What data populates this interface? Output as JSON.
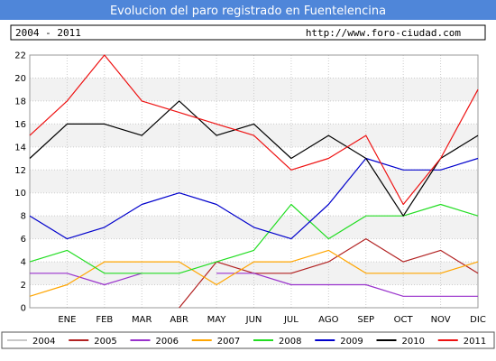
{
  "header": {
    "title": "Evolucion del paro registrado en Fuentelencina",
    "range": "2004 - 2011",
    "url": "http://www.foro-ciudad.com"
  },
  "colors": {
    "title_bar": "#4f86d9",
    "plot_band_odd": "#f2f2f2",
    "grid": "#cccccc"
  },
  "chart_data": {
    "type": "line",
    "categories": [
      "",
      "ENE",
      "FEB",
      "MAR",
      "ABR",
      "MAY",
      "JUN",
      "JUL",
      "AGO",
      "SEP",
      "OCT",
      "NOV",
      "DIC"
    ],
    "ylim": [
      0,
      22
    ],
    "yticks": [
      0,
      2,
      4,
      6,
      8,
      10,
      12,
      14,
      16,
      18,
      20,
      22
    ],
    "grid": true,
    "legend_position": "bottom",
    "series": [
      {
        "name": "2004",
        "color": "#c8c8c8",
        "values": [
          null,
          null,
          null,
          null,
          null,
          null,
          null,
          null,
          null,
          null,
          null,
          null,
          null
        ]
      },
      {
        "name": "2005",
        "color": "#b22222",
        "values": [
          null,
          null,
          null,
          null,
          0,
          4,
          3,
          3,
          4,
          6,
          4,
          5,
          3
        ]
      },
      {
        "name": "2006",
        "color": "#9932cc",
        "values": [
          3,
          3,
          2,
          3,
          null,
          3,
          3,
          2,
          2,
          2,
          1,
          1,
          1
        ]
      },
      {
        "name": "2007",
        "color": "#ffa500",
        "values": [
          1,
          2,
          4,
          4,
          4,
          2,
          4,
          4,
          5,
          3,
          3,
          3,
          4
        ]
      },
      {
        "name": "2008",
        "color": "#22dd22",
        "values": [
          4,
          5,
          3,
          3,
          3,
          4,
          5,
          9,
          6,
          8,
          8,
          9,
          8
        ]
      },
      {
        "name": "2009",
        "color": "#0000cc",
        "values": [
          8,
          6,
          7,
          9,
          10,
          9,
          7,
          6,
          9,
          13,
          12,
          12,
          13
        ]
      },
      {
        "name": "2010",
        "color": "#000000",
        "values": [
          13,
          16,
          16,
          15,
          18,
          15,
          16,
          13,
          15,
          13,
          8,
          13,
          15
        ]
      },
      {
        "name": "2011",
        "color": "#ee1111",
        "values": [
          15,
          18,
          22,
          18,
          17,
          16,
          15,
          12,
          13,
          15,
          9,
          13,
          19
        ]
      }
    ]
  }
}
